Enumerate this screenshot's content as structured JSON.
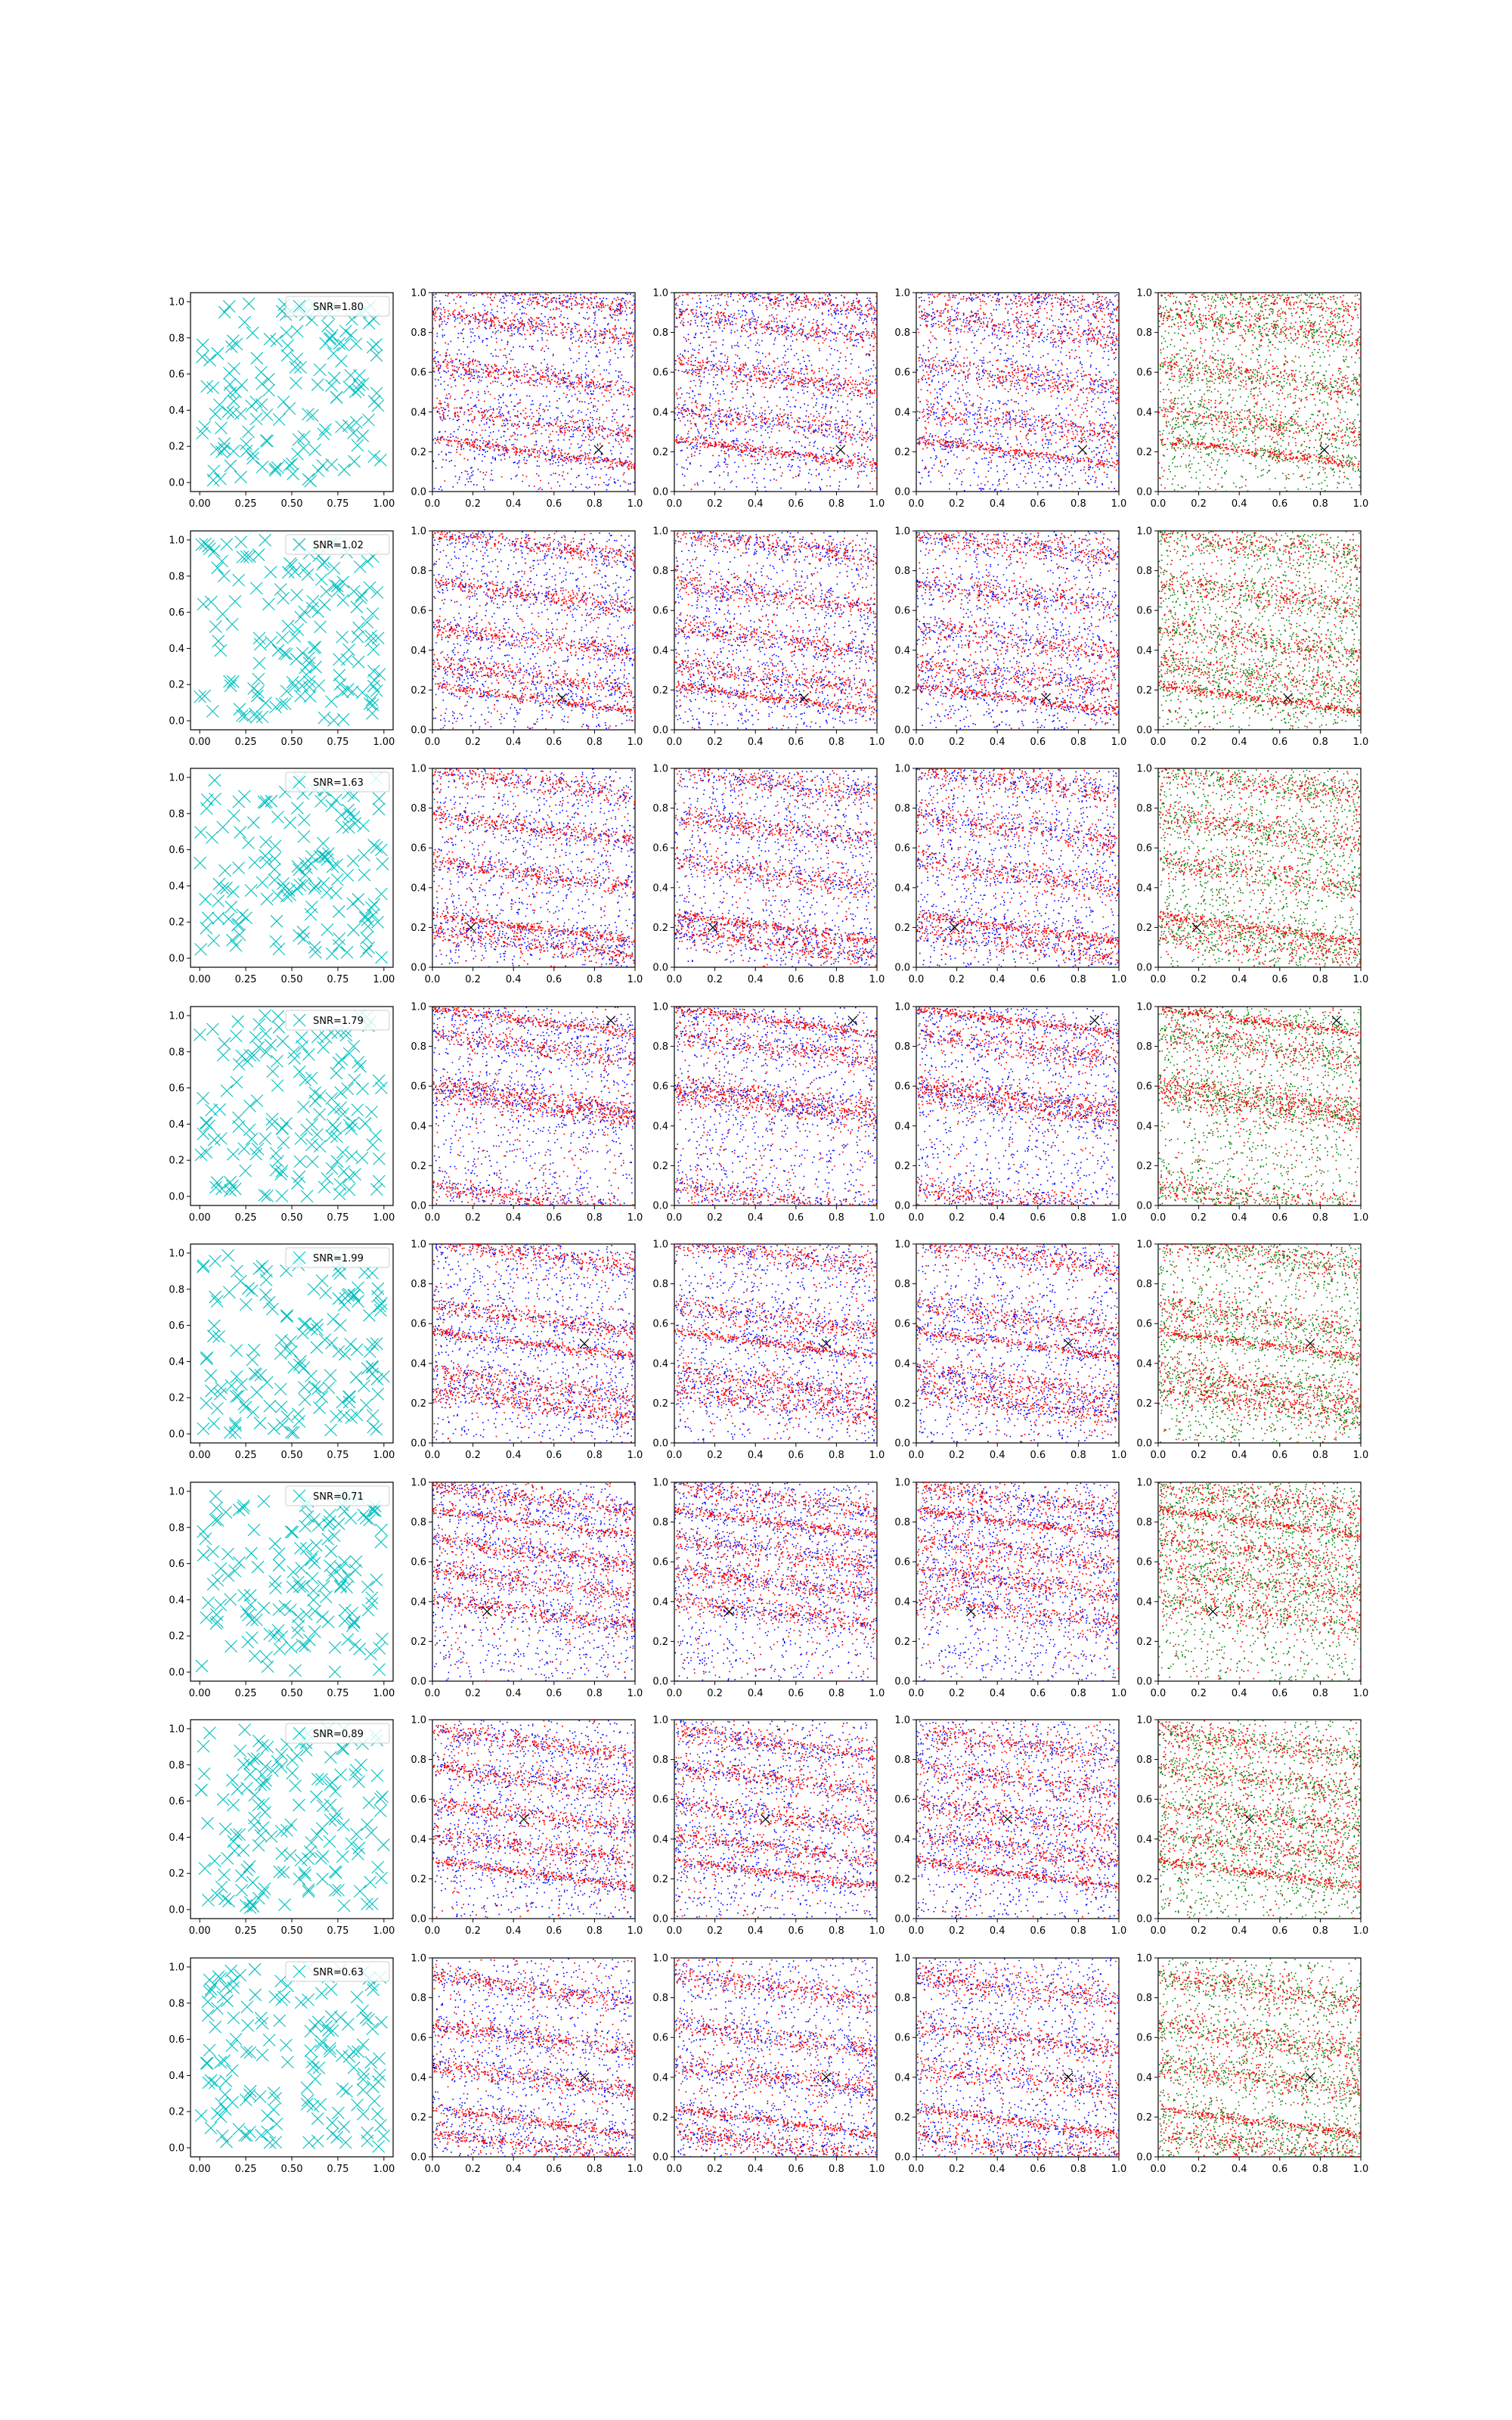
{
  "colors": {
    "cyan": "#00bfbf",
    "red": "#ff0000",
    "blue": "#0000ff",
    "green": "#008000",
    "truth_marker": "#000000"
  },
  "chart_data": {
    "type": "scatter",
    "layout": "grid of 8 rows x 5 columns",
    "axes": {
      "xlim": [
        0,
        1
      ],
      "ylim": [
        0,
        1
      ],
      "col1_xticks": [
        "0.00",
        "0.25",
        "0.50",
        "0.75",
        "1.00"
      ],
      "col1_yticks": [
        "0.0",
        "0.2",
        "0.4",
        "0.6",
        "0.8",
        "1.0"
      ],
      "other_xticks": [
        "0.0",
        "0.2",
        "0.4",
        "0.6",
        "0.8",
        "1.0"
      ],
      "other_yticks": [
        "0.0",
        "0.2",
        "0.4",
        "0.6",
        "0.8",
        "1.0"
      ],
      "grid": false
    },
    "column_descriptions": [
      "cyan x markers with SNR legend",
      "red and blue dot scatter with black x marker",
      "red and blue dot scatter with black x marker",
      "red and blue dot scatter with black x marker",
      "red and green dot scatter with black x marker"
    ],
    "rows": [
      {
        "snr_label": "SNR=1.80",
        "truth": [
          0.82,
          0.21
        ],
        "bands": [
          0.2,
          0.35,
          0.83,
          0.98,
          0.58
        ]
      },
      {
        "snr_label": "SNR=1.02",
        "truth": [
          0.64,
          0.16
        ],
        "bands": [
          0.16,
          0.27,
          0.68,
          0.93,
          0.45
        ]
      },
      {
        "snr_label": "SNR=1.63",
        "truth": [
          0.19,
          0.2
        ],
        "bands": [
          0.2,
          0.47,
          0.93,
          0.12,
          0.7
        ]
      },
      {
        "snr_label": "SNR=1.79",
        "truth": [
          0.88,
          0.93
        ],
        "bands": [
          0.93,
          0.03,
          0.55,
          0.5,
          0.8
        ]
      },
      {
        "snr_label": "SNR=1.99",
        "truth": [
          0.75,
          0.5
        ],
        "bands": [
          0.5,
          0.2,
          0.95,
          0.63,
          0.3
        ]
      },
      {
        "snr_label": "SNR=0.71",
        "truth": [
          0.27,
          0.35
        ],
        "bands": [
          0.8,
          0.5,
          0.35,
          0.92,
          0.65
        ]
      },
      {
        "snr_label": "SNR=0.89",
        "truth": [
          0.45,
          0.5
        ],
        "bands": [
          0.23,
          0.52,
          0.88,
          0.7,
          0.36
        ]
      },
      {
        "snr_label": "SNR=0.63",
        "truth": [
          0.75,
          0.4
        ],
        "bands": [
          0.18,
          0.4,
          0.85,
          0.06,
          0.6
        ]
      }
    ]
  }
}
